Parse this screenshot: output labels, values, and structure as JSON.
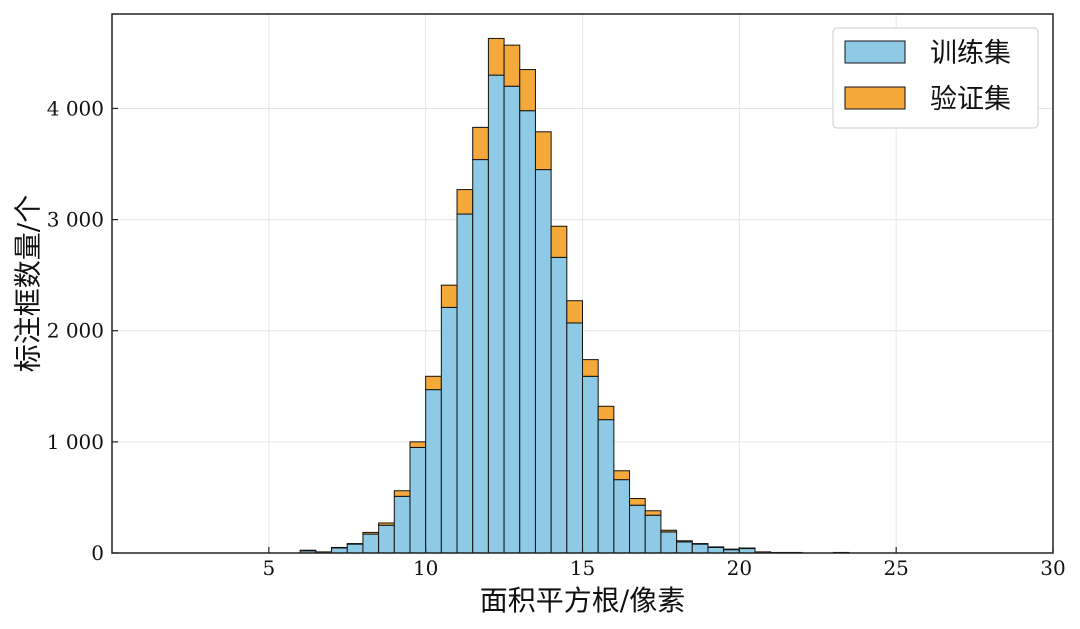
{
  "chart_data": {
    "type": "bar",
    "stacked": true,
    "xlabel": "面积平方根/像素",
    "ylabel": "标注框数量/个",
    "xlim": [
      0,
      30
    ],
    "ylim": [
      0,
      4850
    ],
    "xticks": [
      5,
      10,
      15,
      20,
      25,
      30
    ],
    "yticks": [
      0,
      1000,
      2000,
      3000,
      4000
    ],
    "ytick_labels": [
      "0",
      "1 000",
      "2 000",
      "3 000",
      "4 000"
    ],
    "grid": true,
    "legend_position": "top-right",
    "bin_width": 0.5,
    "bin_starts": [
      6.0,
      6.5,
      7.0,
      7.5,
      8.0,
      8.5,
      9.0,
      9.5,
      10.0,
      10.5,
      11.0,
      11.5,
      12.0,
      12.5,
      13.0,
      13.5,
      14.0,
      14.5,
      15.0,
      15.5,
      16.0,
      16.5,
      17.0,
      17.5,
      18.0,
      18.5,
      19.0,
      19.5,
      20.0,
      20.5,
      21.0,
      21.5,
      22.0,
      22.5,
      23.0
    ],
    "series": [
      {
        "name": "训练集",
        "color": "#8ecae6",
        "values": [
          20,
          10,
          45,
          80,
          170,
          250,
          510,
          950,
          1470,
          2210,
          3050,
          3540,
          4300,
          4200,
          3980,
          3450,
          2660,
          2070,
          1590,
          1200,
          660,
          430,
          340,
          190,
          100,
          80,
          50,
          30,
          40,
          10,
          5,
          5,
          0,
          0,
          5
        ]
      },
      {
        "name": "验证集",
        "color": "#f4a93a",
        "values": [
          5,
          0,
          5,
          5,
          15,
          20,
          50,
          50,
          120,
          200,
          220,
          290,
          330,
          370,
          370,
          340,
          280,
          200,
          150,
          120,
          80,
          60,
          40,
          15,
          10,
          5,
          5,
          5,
          5,
          0,
          0,
          0,
          0,
          0,
          0
        ]
      }
    ]
  }
}
